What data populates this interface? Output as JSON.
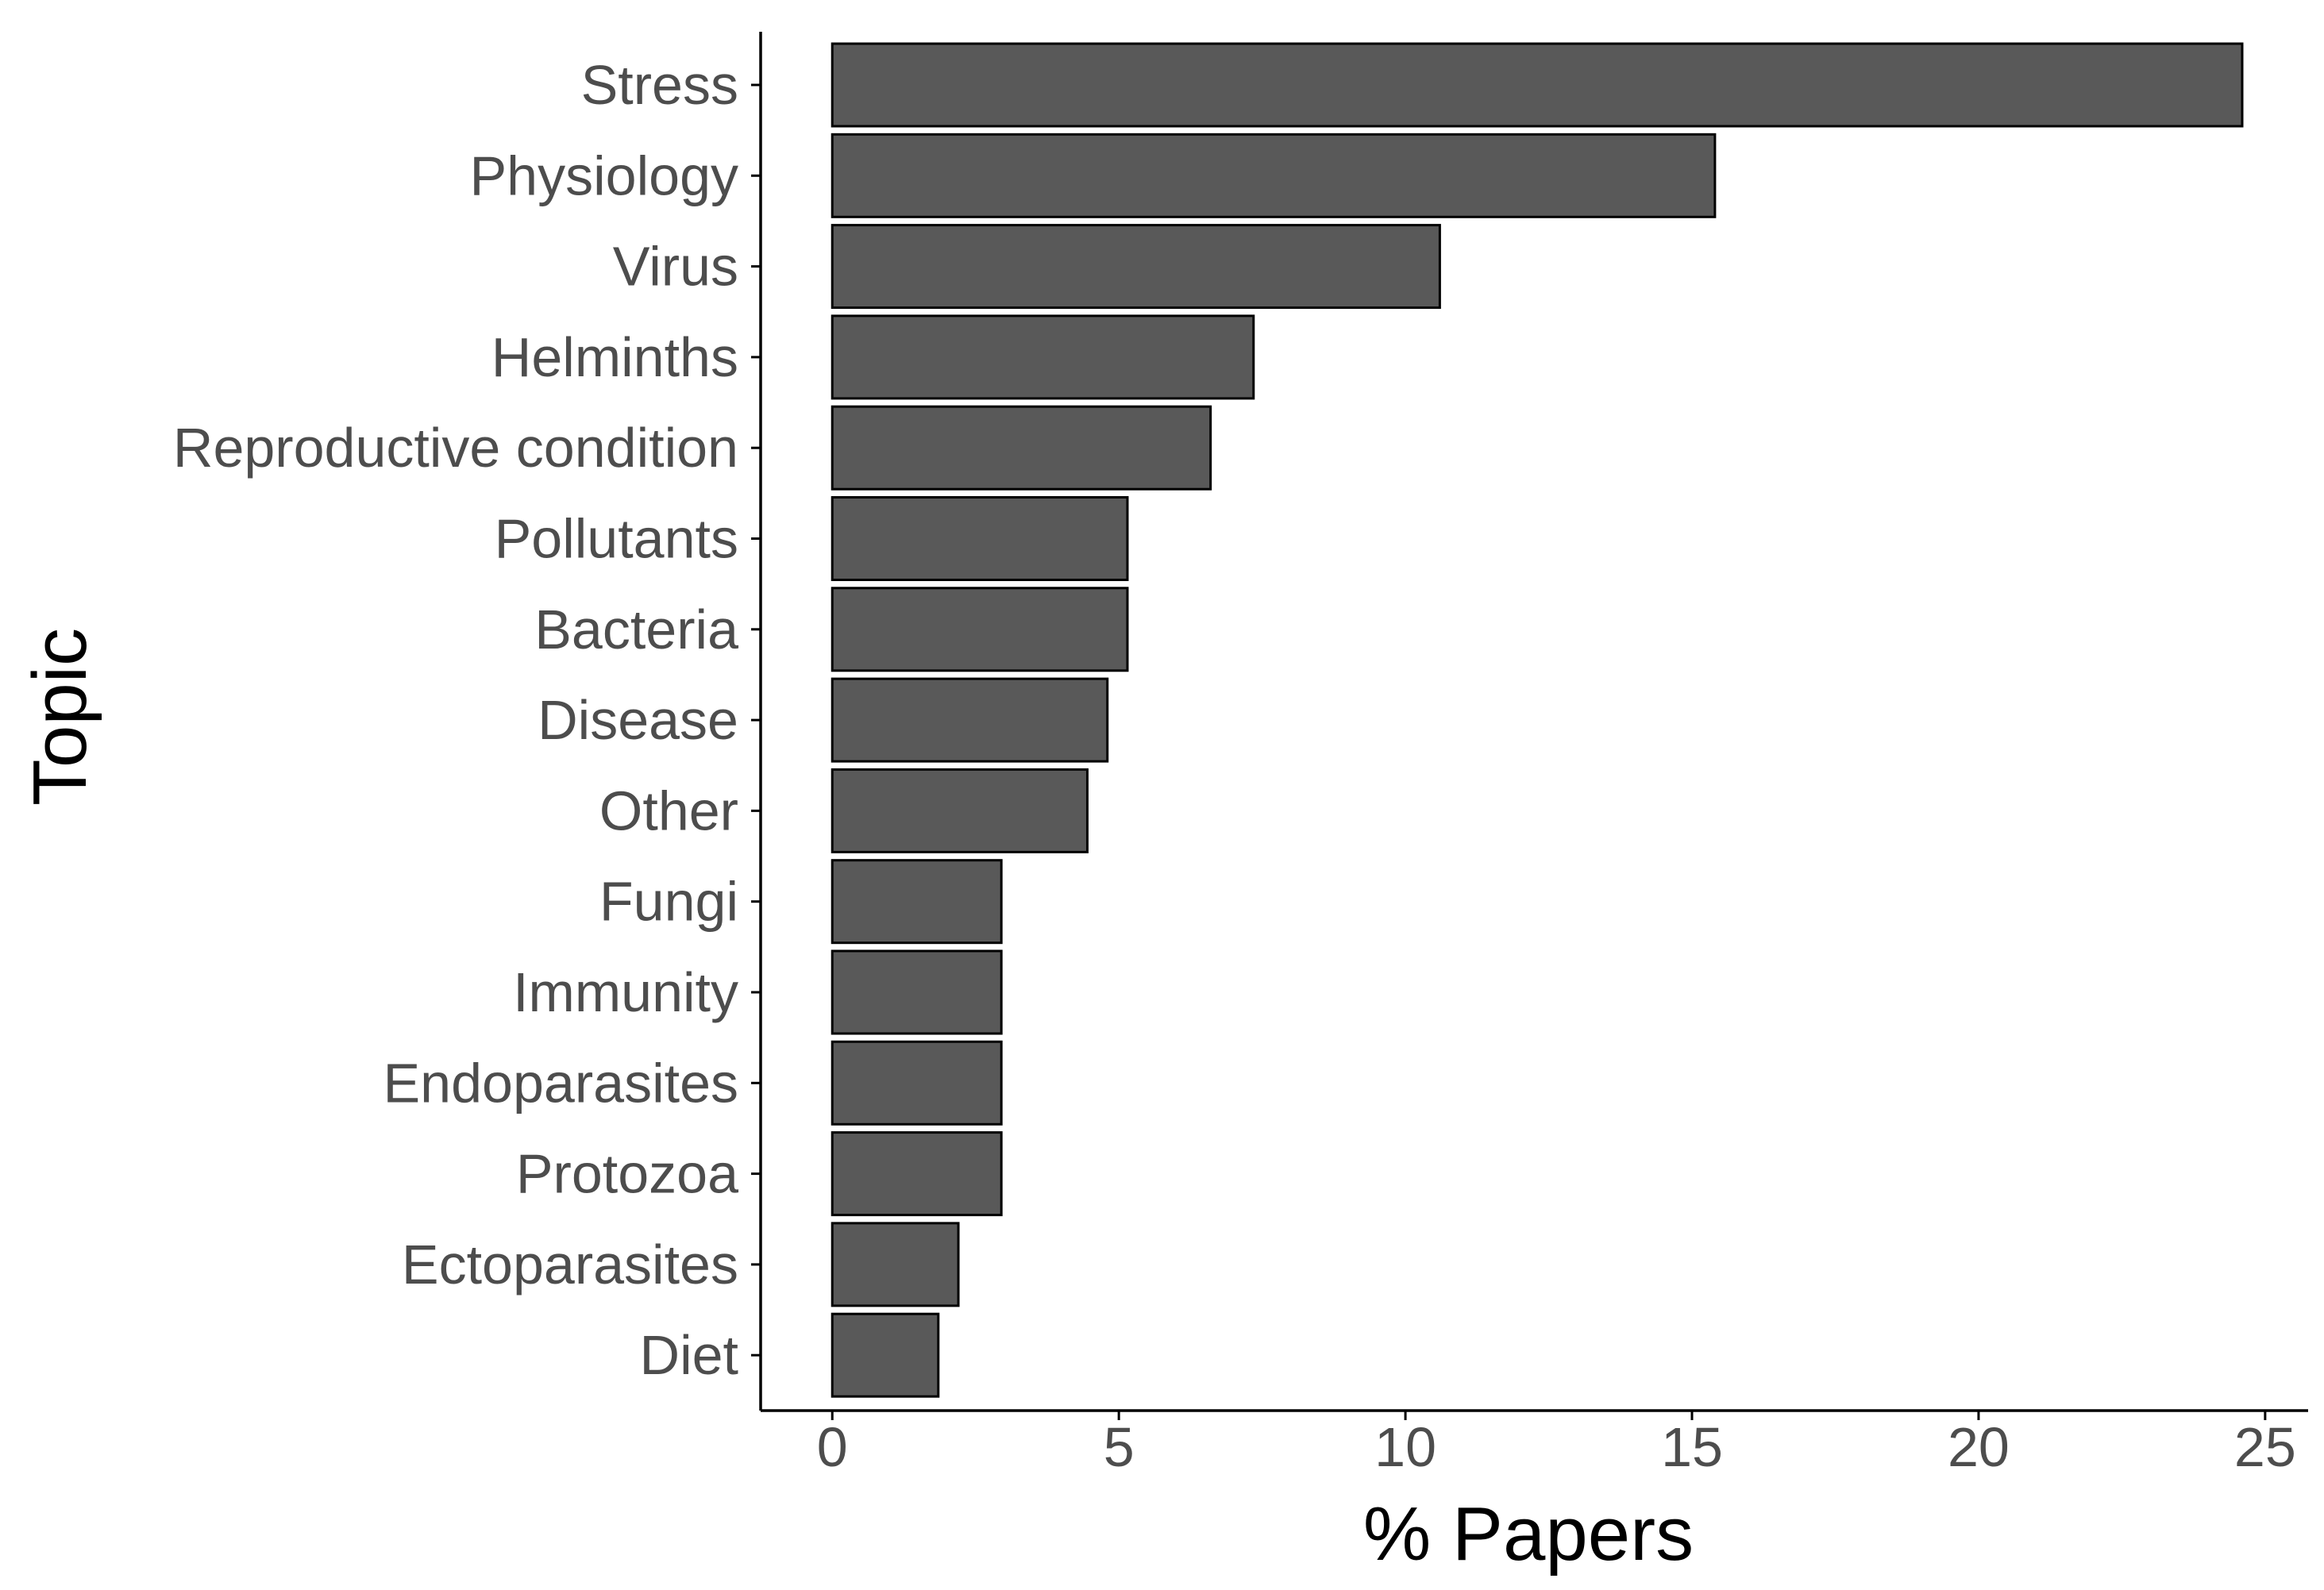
{
  "chart_data": {
    "type": "bar",
    "orientation": "horizontal",
    "categories": [
      "Stress",
      "Physiology",
      "Virus",
      "Helminths",
      "Reproductive condition",
      "Pollutants",
      "Bacteria",
      "Disease",
      "Other",
      "Fungi",
      "Immunity",
      "Endoparasites",
      "Protozoa",
      "Ectoparasites",
      "Diet"
    ],
    "values": [
      24.6,
      15.4,
      10.6,
      7.35,
      6.6,
      5.15,
      5.15,
      4.8,
      4.45,
      2.95,
      2.95,
      2.95,
      2.95,
      2.2,
      1.85
    ],
    "xlabel": "% Papers",
    "ylabel": "Topic",
    "xlim": [
      -1.25,
      25.75
    ],
    "xticks": [
      "0",
      "5",
      "10",
      "15",
      "20",
      "25"
    ],
    "grid": false,
    "bar_color": "#595959",
    "bar_outline_color": "#000000",
    "axis_color": "#000000",
    "tick_label_color": "#4d4d4d"
  }
}
